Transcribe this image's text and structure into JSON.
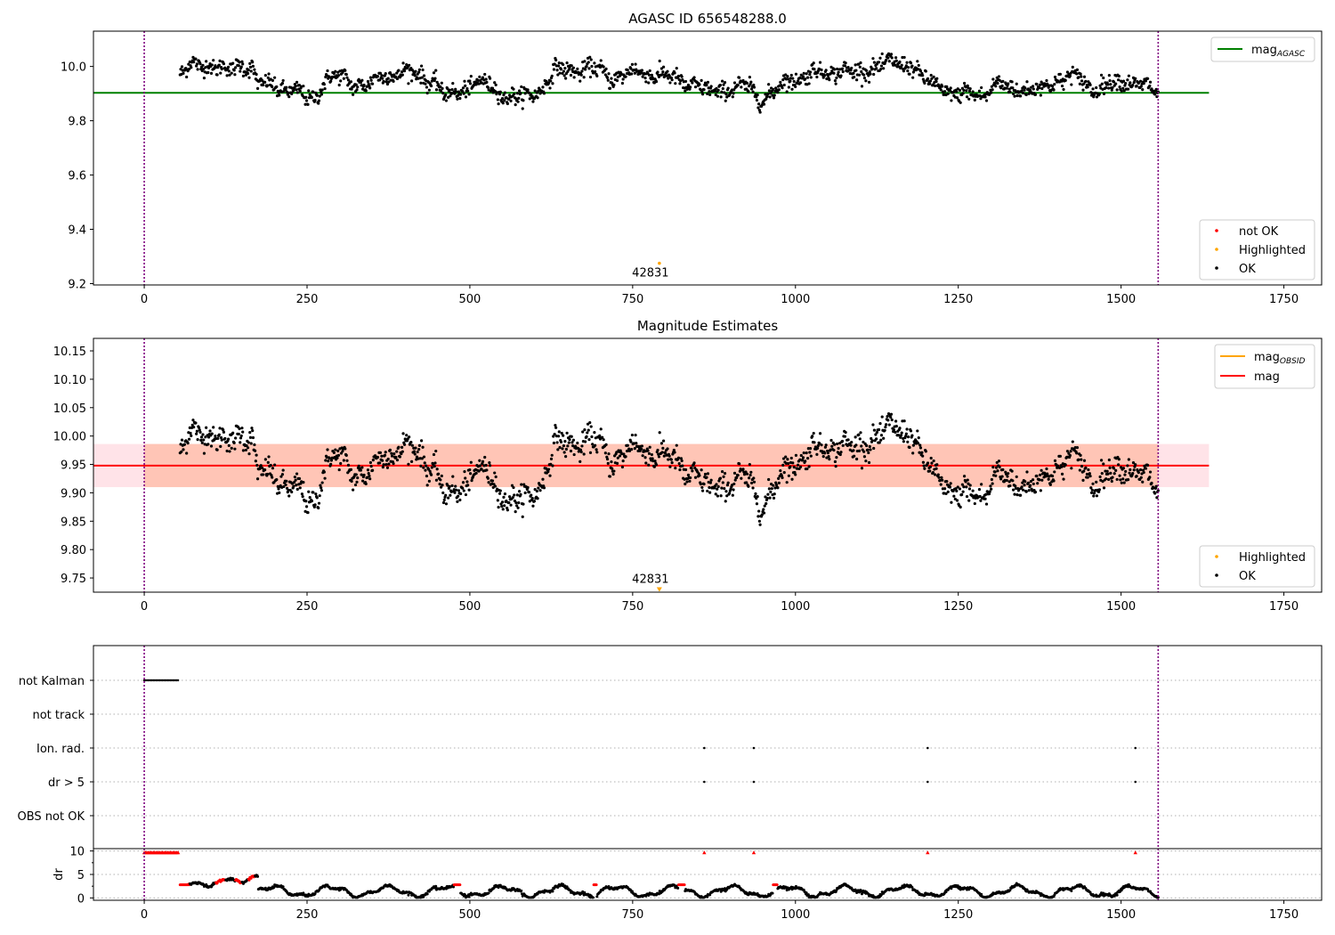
{
  "colors": {
    "axes": "#000000",
    "ok": "#000000",
    "not_ok": "#ff0000",
    "highlight": "#ffa500",
    "mag_agasc": "#008000",
    "mag": "#ff0000",
    "mag_obsid": "#ffa500",
    "epoch_line": "#800080",
    "band_red": "#ffc0cb",
    "band_orange": "#ffa07a",
    "grid": "#b0b0b0"
  },
  "chart_data": [
    {
      "type": "scatter",
      "title": "AGASC ID 656548288.0",
      "xlim": [
        -78,
        1808
      ],
      "ylim": [
        9.195,
        10.13
      ],
      "xticks": [
        0,
        250,
        500,
        750,
        1000,
        1250,
        1500,
        1750
      ],
      "yticks": [
        9.2,
        9.4,
        9.6,
        9.8,
        10.0
      ],
      "ytick_labels": [
        "9.2",
        "9.4",
        "9.6",
        "9.8",
        "10.0"
      ],
      "epoch_lines": [
        0,
        1557
      ],
      "hlines": [
        {
          "name": "mag_AGASC",
          "y": 9.903,
          "x0": -78,
          "x1": 1635
        }
      ],
      "ok_series": {
        "name": "OK",
        "x_start": 55,
        "x_end": 1557,
        "count": 1500,
        "trend": [
          [
            55,
            9.97
          ],
          [
            70,
            10.0
          ],
          [
            100,
            10.01
          ],
          [
            130,
            9.98
          ],
          [
            150,
            10.01
          ],
          [
            165,
            10.0
          ],
          [
            175,
            9.93
          ],
          [
            200,
            9.93
          ],
          [
            230,
            9.91
          ],
          [
            250,
            9.88
          ],
          [
            265,
            9.89
          ],
          [
            275,
            9.95
          ],
          [
            300,
            9.96
          ],
          [
            320,
            9.94
          ],
          [
            345,
            9.93
          ],
          [
            370,
            9.97
          ],
          [
            400,
            9.98
          ],
          [
            430,
            9.96
          ],
          [
            450,
            9.94
          ],
          [
            460,
            9.89
          ],
          [
            480,
            9.9
          ],
          [
            505,
            9.94
          ],
          [
            530,
            9.93
          ],
          [
            550,
            9.9
          ],
          [
            575,
            9.88
          ],
          [
            590,
            9.89
          ],
          [
            610,
            9.92
          ],
          [
            630,
            9.98
          ],
          [
            660,
            9.99
          ],
          [
            690,
            9.99
          ],
          [
            720,
            9.96
          ],
          [
            760,
            9.98
          ],
          [
            790,
            9.97
          ],
          [
            820,
            9.95
          ],
          [
            850,
            9.93
          ],
          [
            865,
            9.9
          ],
          [
            890,
            9.92
          ],
          [
            930,
            9.92
          ],
          [
            950,
            9.88
          ],
          [
            970,
            9.91
          ],
          [
            990,
            9.95
          ],
          [
            1020,
            9.97
          ],
          [
            1050,
            9.98
          ],
          [
            1070,
            9.99
          ],
          [
            1090,
            9.97
          ],
          [
            1120,
            10.0
          ],
          [
            1150,
            10.01
          ],
          [
            1180,
            10.01
          ],
          [
            1195,
            9.95
          ],
          [
            1220,
            9.93
          ],
          [
            1250,
            9.89
          ],
          [
            1270,
            9.9
          ],
          [
            1290,
            9.9
          ],
          [
            1310,
            9.93
          ],
          [
            1340,
            9.92
          ],
          [
            1370,
            9.91
          ],
          [
            1400,
            9.95
          ],
          [
            1430,
            9.96
          ],
          [
            1460,
            9.92
          ],
          [
            1480,
            9.93
          ],
          [
            1510,
            9.95
          ],
          [
            1540,
            9.92
          ],
          [
            1557,
            9.9
          ]
        ],
        "noise": 0.025
      },
      "highlighted": [
        {
          "x": 791,
          "y": 9.275,
          "label": "42831"
        }
      ],
      "legend_lines": [
        {
          "name": "mag",
          "sub": "AGASC"
        }
      ],
      "legend_points": [
        "not OK",
        "Highlighted",
        "OK"
      ]
    },
    {
      "type": "scatter",
      "title": "Magnitude Estimates",
      "xlim": [
        -78,
        1808
      ],
      "ylim": [
        9.725,
        10.172
      ],
      "xticks": [
        0,
        250,
        500,
        750,
        1000,
        1250,
        1500,
        1750
      ],
      "yticks": [
        9.75,
        9.8,
        9.85,
        9.9,
        9.95,
        10.0,
        10.05,
        10.1,
        10.15
      ],
      "ytick_labels": [
        "9.75",
        "9.80",
        "9.85",
        "9.90",
        "9.95",
        "10.00",
        "10.05",
        "10.10",
        "10.15"
      ],
      "epoch_lines": [
        0,
        1557
      ],
      "hlines": [
        {
          "name": "mag",
          "y": 9.948,
          "x0": -78,
          "x1": 1635
        }
      ],
      "bands": [
        {
          "y0": 9.91,
          "y1": 9.986,
          "x0": -78,
          "x1": 1635,
          "color": "red"
        },
        {
          "y0": 9.91,
          "y1": 9.986,
          "x0": 0,
          "x1": 1557,
          "color": "orange"
        }
      ],
      "ok_series": {
        "name": "OK",
        "same_as_panel": 0,
        "noise": 0.012
      },
      "highlighted": [
        {
          "x": 791,
          "y": 9.729,
          "label": "42831",
          "marker": "triangle-down"
        }
      ],
      "legend_lines": [
        {
          "name": "mag",
          "sub": "OBSID"
        },
        {
          "name": "mag",
          "sub": ""
        }
      ],
      "legend_points": [
        "Highlighted",
        "OK"
      ]
    },
    {
      "type": "scatter",
      "title": "",
      "xlim": [
        -78,
        1808
      ],
      "flag_rows": [
        "not Kalman",
        "not track",
        "Ion. rad.",
        "dr > 5",
        "OBS not OK"
      ],
      "flags": {
        "not Kalman": {
          "x0": 0,
          "x1": 52,
          "step": 2
        },
        "Ion. rad.": [
          860,
          936,
          1203,
          1522
        ],
        "dr > 5": [
          860,
          936,
          1203,
          1522
        ]
      },
      "dr": {
        "ylabel": "dr",
        "yticks": [
          0,
          5,
          10
        ],
        "ylim": [
          -0.5,
          10.5
        ],
        "clipped_red": {
          "range": [
            0,
            52
          ],
          "points": [
            860,
            936,
            1203,
            1522
          ],
          "y": 9.7
        },
        "red_segments": [
          [
            55,
            70
          ],
          [
            110,
            125
          ],
          [
            140,
            150
          ],
          [
            160,
            170
          ],
          [
            475,
            485
          ],
          [
            690,
            695
          ],
          [
            820,
            830
          ],
          [
            965,
            972
          ]
        ]
      },
      "xticks": [
        0,
        250,
        500,
        750,
        1000,
        1250,
        1500,
        1750
      ],
      "epoch_lines": [
        0,
        1557
      ]
    }
  ],
  "labels": {
    "panel1_title": "AGASC ID 656548288.0",
    "panel2_title": "Magnitude Estimates",
    "legend1_lines": [
      {
        "main": "mag",
        "sub": "AGASC"
      }
    ],
    "legend1_points": [
      "not OK",
      "Highlighted",
      "OK"
    ],
    "legend2_lines": [
      {
        "main": "mag",
        "sub": "OBSID"
      },
      {
        "main": "mag",
        "sub": ""
      }
    ],
    "legend2_points": [
      "Highlighted",
      "OK"
    ],
    "highlight_label": "42831",
    "flag_rows": [
      "not Kalman",
      "not track",
      "Ion. rad.",
      "dr > 5",
      "OBS not OK"
    ],
    "dr_label": "dr"
  }
}
